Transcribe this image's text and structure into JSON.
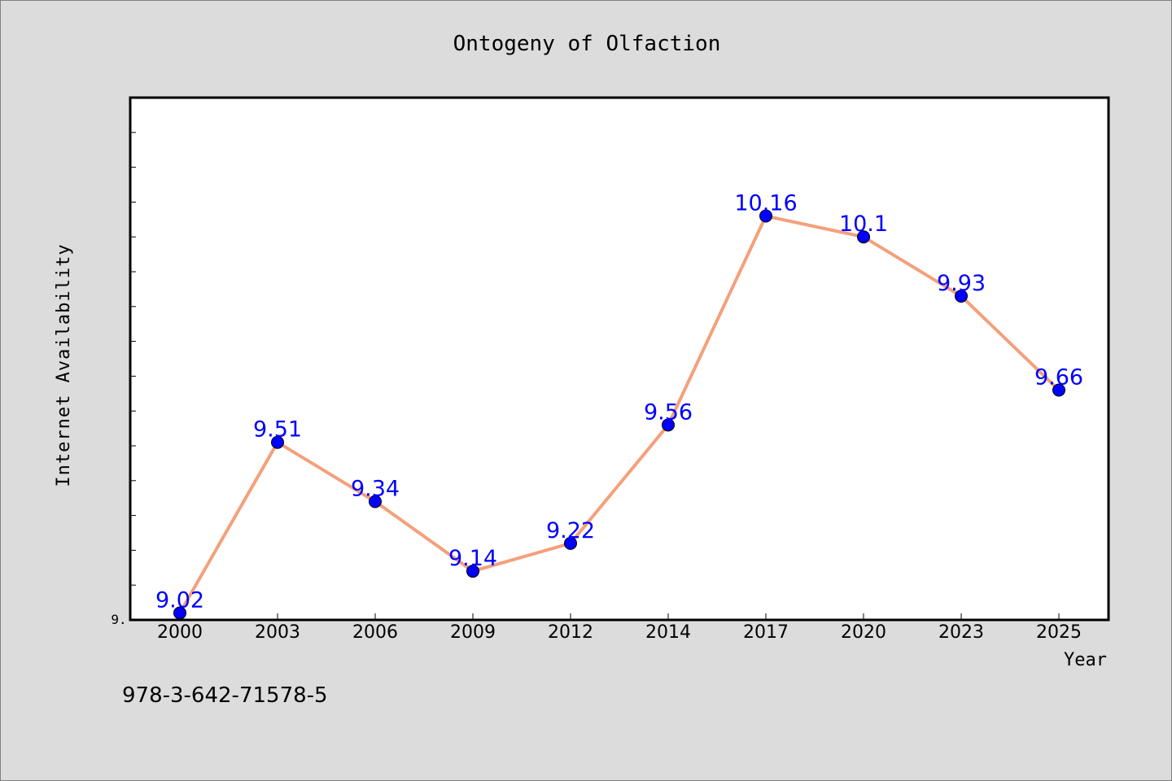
{
  "chart_data": {
    "type": "line",
    "title": "Ontogeny of Olfaction",
    "xlabel": "Year",
    "ylabel": "Internet Availability",
    "categories": [
      "2000",
      "2003",
      "2006",
      "2009",
      "2012",
      "2014",
      "2017",
      "2020",
      "2023",
      "2025"
    ],
    "series": [
      {
        "values": [
          9.02,
          9.51,
          9.34,
          9.14,
          9.22,
          9.56,
          10.16,
          10.1,
          9.93,
          9.66
        ],
        "labels": [
          "9.02",
          "9.51",
          "9.34",
          "9.14",
          "9.22",
          "9.56",
          "10.16",
          "10.1",
          "9.93",
          "9.66"
        ],
        "line_color": "#f4a07c",
        "marker_color": "#0000ff",
        "label_color": "#0000ff"
      }
    ],
    "ylim": [
      9.0,
      10.5
    ],
    "ytick_label": "9.",
    "grid": false,
    "legend": "none"
  },
  "footer": {
    "isbn": "978-3-642-71578-5"
  }
}
